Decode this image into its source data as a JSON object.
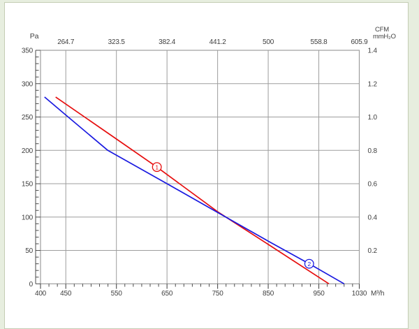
{
  "colors": {
    "page_background": "#e7eedf",
    "panel_background": "#ffffff",
    "panel_border": "#c4cdb4",
    "grid": "#9d9d9d",
    "axis": "#4a4a4a",
    "text": "#3f3f3f",
    "series1": "#e60e0e",
    "series2": "#1a1ae0"
  },
  "chart_data": {
    "type": "line",
    "title": "",
    "x_axis_bottom": {
      "unit_label": "M³/h",
      "min": 400,
      "max": 1030,
      "major_ticks": [
        400,
        450,
        550,
        650,
        750,
        850,
        950,
        1030
      ],
      "minor_tick_step": 16.667
    },
    "x_axis_top": {
      "unit_label": "CFM",
      "tick_labels": [
        "264.7",
        "323.5",
        "382.4",
        "441.2",
        "500",
        "558.8",
        "605.9"
      ],
      "tick_positions_m3h": [
        450,
        550,
        650,
        750,
        850,
        950,
        1030
      ]
    },
    "y_axis_left": {
      "unit_label": "Pa",
      "min": 0,
      "max": 350,
      "major_ticks": [
        0,
        50,
        100,
        150,
        200,
        250,
        300,
        350
      ],
      "minor_tick_step": 10
    },
    "y_axis_right": {
      "unit_label": "mmH₂O",
      "tick_labels": [
        "1.4",
        "1.2",
        "1.0",
        "0.8",
        "0.6",
        "0.4",
        "0.2"
      ],
      "tick_positions_pa": [
        350,
        300,
        250,
        200,
        150,
        100,
        50
      ]
    },
    "grid": {
      "vertical_m3h": [
        450,
        550,
        650,
        750,
        850,
        950
      ],
      "horizontal_pa": [
        50,
        100,
        150,
        200,
        250,
        300
      ]
    },
    "series": [
      {
        "name": "curve-1",
        "marker_label": "1",
        "color_key": "series1",
        "marker_at": [
          630,
          175
        ],
        "points": [
          [
            430,
            280
          ],
          [
            550,
            217
          ],
          [
            630,
            175
          ],
          [
            750,
            108
          ],
          [
            850,
            59
          ],
          [
            970,
            0
          ]
        ]
      },
      {
        "name": "curve-2",
        "marker_label": "2",
        "color_key": "series2",
        "marker_at": [
          931,
          30
        ],
        "points": [
          [
            408,
            280
          ],
          [
            450,
            253
          ],
          [
            533,
            200
          ],
          [
            650,
            150
          ],
          [
            750,
            107
          ],
          [
            850,
            64
          ],
          [
            931,
            30
          ],
          [
            1000,
            0
          ]
        ]
      }
    ]
  }
}
